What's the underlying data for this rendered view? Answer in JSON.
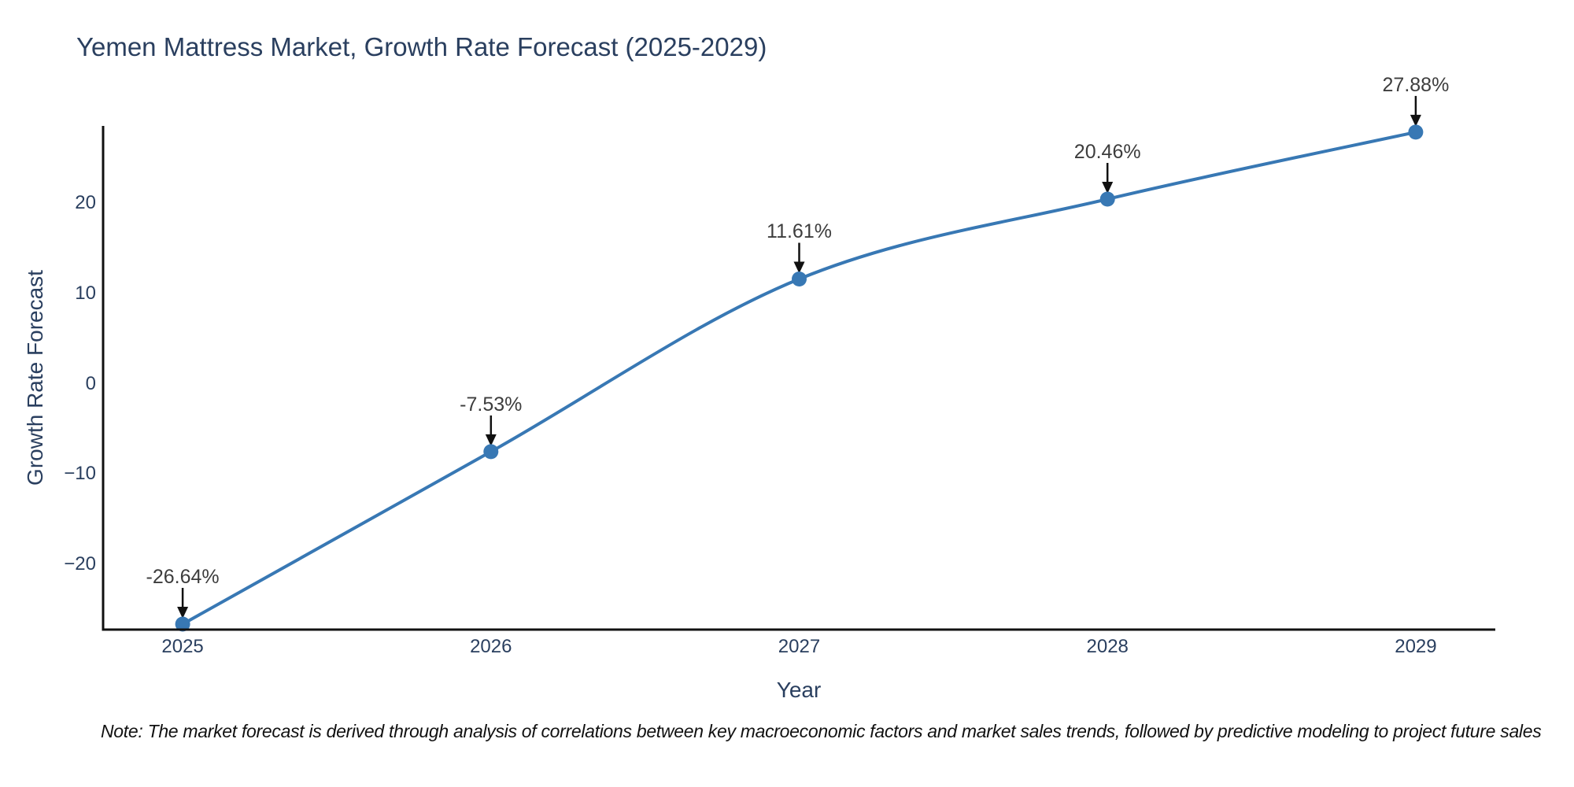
{
  "title": "Yemen Mattress Market, Growth Rate Forecast (2025-2029)",
  "note": "Note: The market forecast is derived through analysis of correlations between key macroeconomic factors and market sales trends, followed by predictive modeling to project future sales",
  "chart_data": {
    "type": "line",
    "title": "Yemen Mattress Market, Growth Rate Forecast (2025-2029)",
    "xlabel": "Year",
    "ylabel": "Growth Rate Forecast",
    "categories": [
      2025,
      2026,
      2027,
      2028,
      2029
    ],
    "values": [
      -26.64,
      -7.53,
      11.61,
      20.46,
      27.88
    ],
    "series": [
      {
        "name": "Growth Rate Forecast",
        "values": [
          -26.64,
          -7.53,
          11.61,
          20.46,
          27.88
        ],
        "point_labels": [
          "-26.64%",
          "-7.53%",
          "11.61%",
          "20.46%",
          "27.88%"
        ]
      }
    ],
    "xtick_labels": [
      "2025",
      "2026",
      "2027",
      "2028",
      "2029"
    ],
    "yticks": [
      20,
      10,
      0,
      -10,
      -20
    ],
    "ytick_labels": [
      "20",
      "10",
      "0",
      "−10",
      "−20"
    ],
    "xlim": [
      2024.742,
      2029.258
    ],
    "ylim": [
      -27.25,
      28.57
    ],
    "grid": false,
    "legend_position": "none",
    "line_shape": "spline",
    "annotation_arrows": "black arrow pointing down to each marker",
    "colors": {
      "line": "#3878b4",
      "marker": "#3878b4",
      "axis": "#111111",
      "title_text": "#2a3f5f",
      "tick_text": "#2a3f5f",
      "annotation_text": "#3d3d3d",
      "background": "#ffffff"
    }
  }
}
